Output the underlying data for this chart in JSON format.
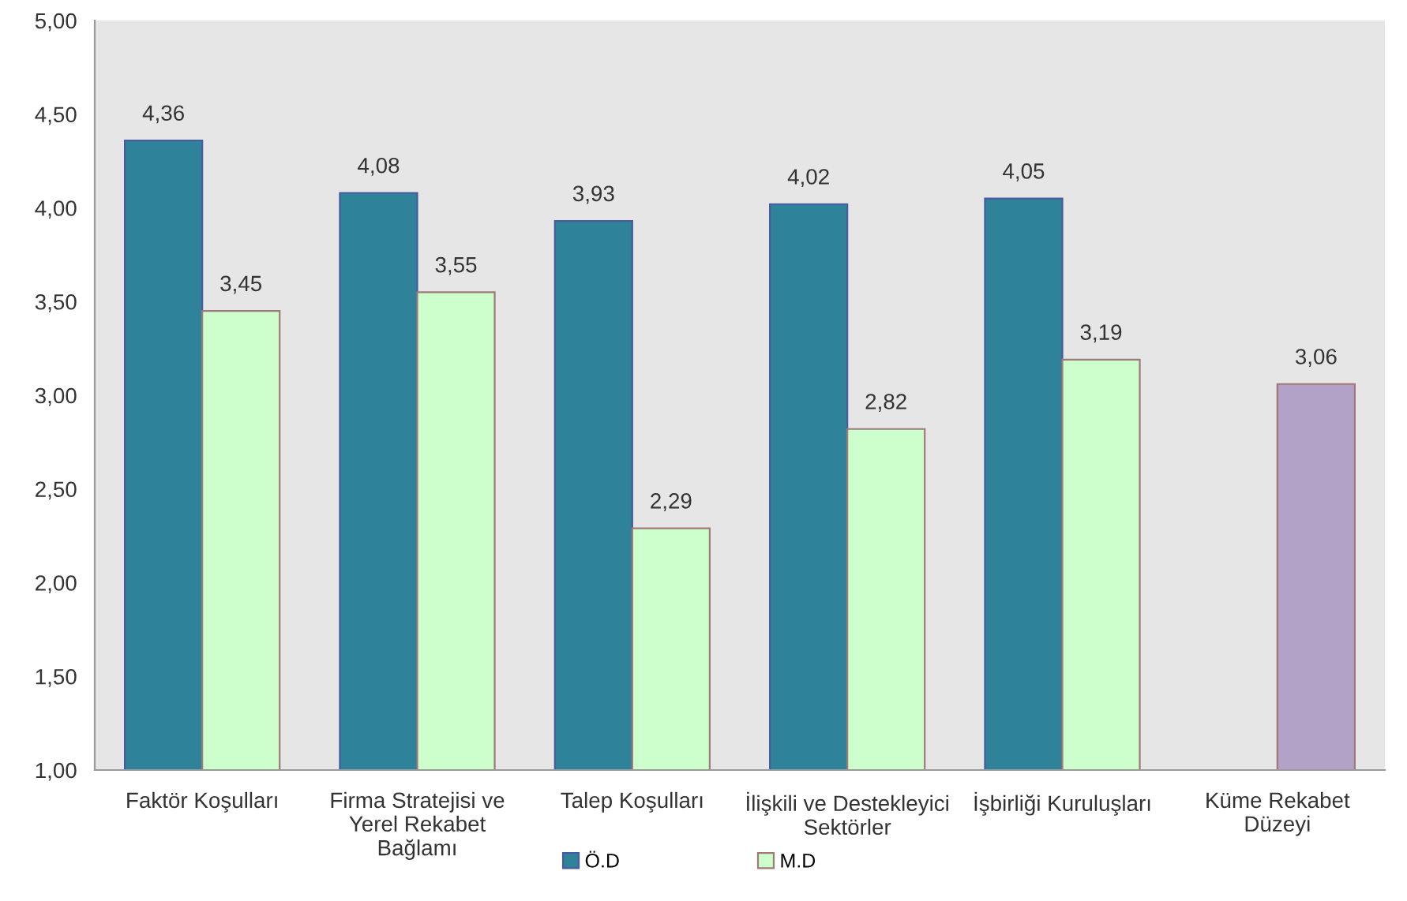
{
  "chart_data": {
    "type": "bar",
    "categories": [
      "Faktör Koşulları",
      "Firma Stratejisi ve\nYerel Rekabet\nBağlamı",
      "Talep Koşulları",
      "İlişkili ve Destekleyici\nSektörler",
      "İşbirliği Kuruluşları",
      "Küme Rekabet\nDüzeyi"
    ],
    "series": [
      {
        "name": "Ö.D",
        "color": "#2e8299",
        "values": [
          4.36,
          4.08,
          3.93,
          4.02,
          4.05,
          null
        ],
        "value_labels": [
          "4,36",
          "4,08",
          "3,93",
          "4,02",
          "4,05",
          null
        ]
      },
      {
        "name": "M.D",
        "color": "#ccffcc",
        "colors": [
          "#ccffcc",
          "#ccffcc",
          "#ccffcc",
          "#ccffcc",
          "#ccffcc",
          "#b3a2c7"
        ],
        "values": [
          3.45,
          3.55,
          2.29,
          2.82,
          3.19,
          3.06
        ],
        "value_labels": [
          "3,45",
          "3,55",
          "2,29",
          "2,82",
          "3,19",
          "3,06"
        ]
      }
    ],
    "ylim": [
      1,
      5
    ],
    "yticks": [
      {
        "value": 1,
        "label": "1,00"
      },
      {
        "value": 1.5,
        "label": "1,50"
      },
      {
        "value": 2,
        "label": "2,00"
      },
      {
        "value": 2.5,
        "label": "2,50"
      },
      {
        "value": 3,
        "label": "3,00"
      },
      {
        "value": 3.5,
        "label": "3,50"
      },
      {
        "value": 4,
        "label": "4,00"
      },
      {
        "value": 4.5,
        "label": "4,50"
      },
      {
        "value": 5,
        "label": "5,00"
      }
    ],
    "legend": "bottom"
  }
}
